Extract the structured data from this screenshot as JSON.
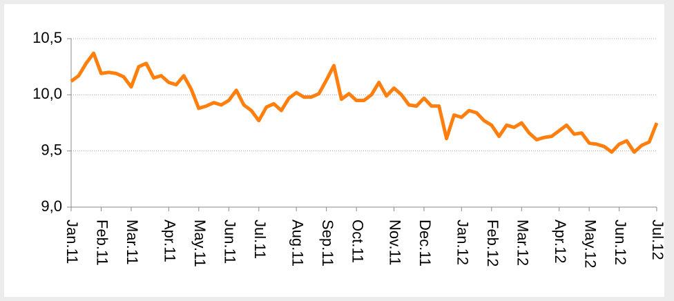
{
  "chart_data": {
    "type": "line",
    "categories": [
      "Jan.11",
      null,
      null,
      null,
      "Feb.11",
      null,
      null,
      null,
      "Mar.11",
      null,
      null,
      null,
      null,
      "Apr.11",
      null,
      null,
      null,
      "May.11",
      null,
      null,
      null,
      "Jun.11",
      null,
      null,
      null,
      "Jul.11",
      null,
      null,
      null,
      null,
      "Aug.11",
      null,
      null,
      null,
      "Sep.11",
      null,
      null,
      null,
      "Oct.11",
      null,
      null,
      null,
      null,
      "Nov.11",
      null,
      null,
      null,
      "Dec.11",
      null,
      null,
      null,
      null,
      "Jan.12",
      null,
      null,
      null,
      "Feb.12",
      null,
      null,
      null,
      "Mar.12",
      null,
      null,
      null,
      null,
      "Apr.12",
      null,
      null,
      null,
      "May.12",
      null,
      null,
      null,
      "Jun.12",
      null,
      null,
      null,
      null,
      "Jul.12"
    ],
    "series": [
      {
        "color": "#ff7f0e",
        "values": [
          10.12,
          10.17,
          10.28,
          10.37,
          10.19,
          10.2,
          10.19,
          10.16,
          10.07,
          10.25,
          10.28,
          10.15,
          10.17,
          10.11,
          10.09,
          10.17,
          10.05,
          9.88,
          9.9,
          9.93,
          9.91,
          9.95,
          10.04,
          9.91,
          9.86,
          9.77,
          9.89,
          9.92,
          9.86,
          9.97,
          10.02,
          9.98,
          9.98,
          10.01,
          10.13,
          10.26,
          9.96,
          10.01,
          9.95,
          9.95,
          10.0,
          10.11,
          9.99,
          10.06,
          10.0,
          9.91,
          9.9,
          9.97,
          9.9,
          9.9,
          9.61,
          9.82,
          9.8,
          9.86,
          9.84,
          9.77,
          9.73,
          9.63,
          9.73,
          9.71,
          9.75,
          9.66,
          9.6,
          9.62,
          9.63,
          9.68,
          9.73,
          9.65,
          9.66,
          9.57,
          9.56,
          9.54,
          9.49,
          9.56,
          9.59,
          9.49,
          9.55,
          9.58,
          9.75
        ]
      }
    ],
    "ylim": [
      9.0,
      10.5
    ],
    "yticks": [
      {
        "value": 9.0,
        "label": "9,0"
      },
      {
        "value": 9.5,
        "label": "9,5"
      },
      {
        "value": 10.0,
        "label": "10,0"
      },
      {
        "value": 10.5,
        "label": "10,5"
      }
    ],
    "grid": true
  }
}
